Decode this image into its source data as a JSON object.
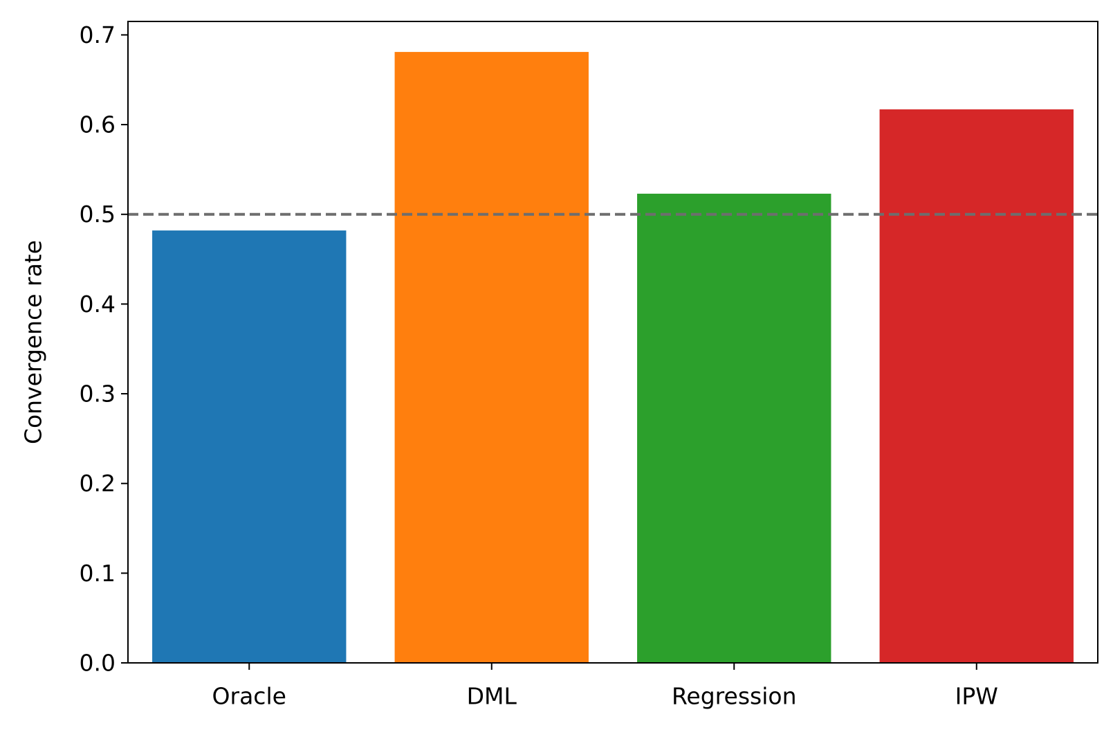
{
  "chart_data": {
    "type": "bar",
    "title": "",
    "xlabel": "",
    "ylabel": "Convergence rate",
    "categories": [
      "Oracle",
      "DML",
      "Regression",
      "IPW"
    ],
    "values": [
      0.482,
      0.681,
      0.523,
      0.617
    ],
    "colors": [
      "#1f77b4",
      "#ff7f0e",
      "#2ca02c",
      "#d62728"
    ],
    "ylim": [
      0,
      0.715
    ],
    "yticks": [
      0.0,
      0.1,
      0.2,
      0.3,
      0.4,
      0.5,
      0.6,
      0.7
    ],
    "ytick_labels": [
      "0.0",
      "0.1",
      "0.2",
      "0.3",
      "0.4",
      "0.5",
      "0.6",
      "0.7"
    ],
    "reference_line": {
      "y": 0.5,
      "style": "dashed",
      "color": "#6e6e6e"
    },
    "grid": false,
    "legend": "none"
  }
}
